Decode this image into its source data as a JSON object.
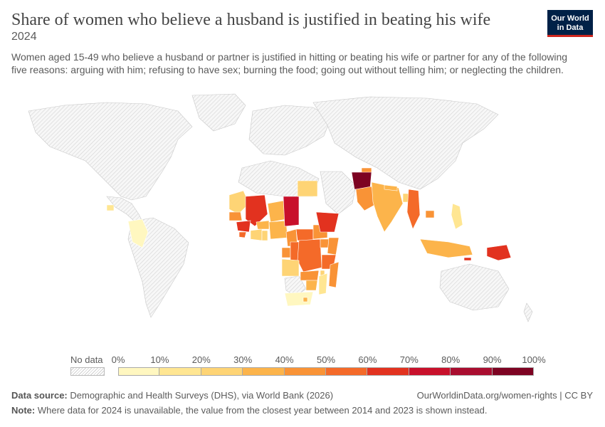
{
  "header": {
    "title": "Share of women who believe a husband is justified in beating his wife",
    "year": "2024",
    "subtitle": "Women aged 15-49 who believe a husband or partner is justified in hitting or beating his wife or partner for any of the following five reasons: arguing with him; refusing to have sex; burning the food; going out without telling him; or neglecting the children."
  },
  "logo": {
    "line1": "Our World",
    "line2": "in Data"
  },
  "legend": {
    "no_data_label": "No data",
    "ticks": [
      "0%",
      "10%",
      "20%",
      "30%",
      "40%",
      "50%",
      "60%",
      "70%",
      "80%",
      "90%",
      "100%"
    ],
    "colors": [
      "#fff7c0",
      "#ffe692",
      "#fed475",
      "#fcb44b",
      "#f99336",
      "#f46a29",
      "#e2321f",
      "#c8102b",
      "#a90d2f",
      "#7d0322"
    ],
    "no_data_color": "#e9e9e9"
  },
  "map_data": {
    "values_bin_index": {
      "Afghanistan": 9,
      "Pakistan": 4,
      "India": 3,
      "Nepal": 3,
      "Bangladesh": 2,
      "Myanmar": 5,
      "Tajikistan": 4,
      "Timor-Leste": 6,
      "Papua New Guinea": 6,
      "Indonesia": 3,
      "Philippines": 1,
      "Cambodia": 4,
      "Mali": 6,
      "Chad": 7,
      "Guinea": 6,
      "Sierra Leone": 5,
      "Senegal": 4,
      "Mauritania": 2,
      "Niger": 3,
      "Ethiopia": 6,
      "DR Congo": 5,
      "Congo": 5,
      "Central African Republic": 5,
      "South Sudan": 4,
      "Uganda": 4,
      "Kenya": 4,
      "Tanzania": 5,
      "Zambia": 4,
      "Malawi": 2,
      "Mozambique": 1,
      "Madagascar": 4,
      "Zimbabwe": 3,
      "Angola": 2,
      "South Africa": 0,
      "Egypt": 2,
      "Nigeria": 3,
      "Ghana": 2,
      "Cameroon": 4,
      "Colombia": 0,
      "Honduras": 1,
      "Lesotho": 3,
      "Burkina Faso": 3,
      "Cote d'Ivoire": 2,
      "Gabon": 4
    }
  },
  "footer": {
    "source_label": "Data source:",
    "source_text": "Demographic and Health Surveys (DHS), via World Bank (2026)",
    "url": "OurWorldinData.org/women-rights | CC BY",
    "note_label": "Note:",
    "note_text": "Where data for 2024 is unavailable, the value from the closest year between 2014 and 2023 is shown instead."
  }
}
